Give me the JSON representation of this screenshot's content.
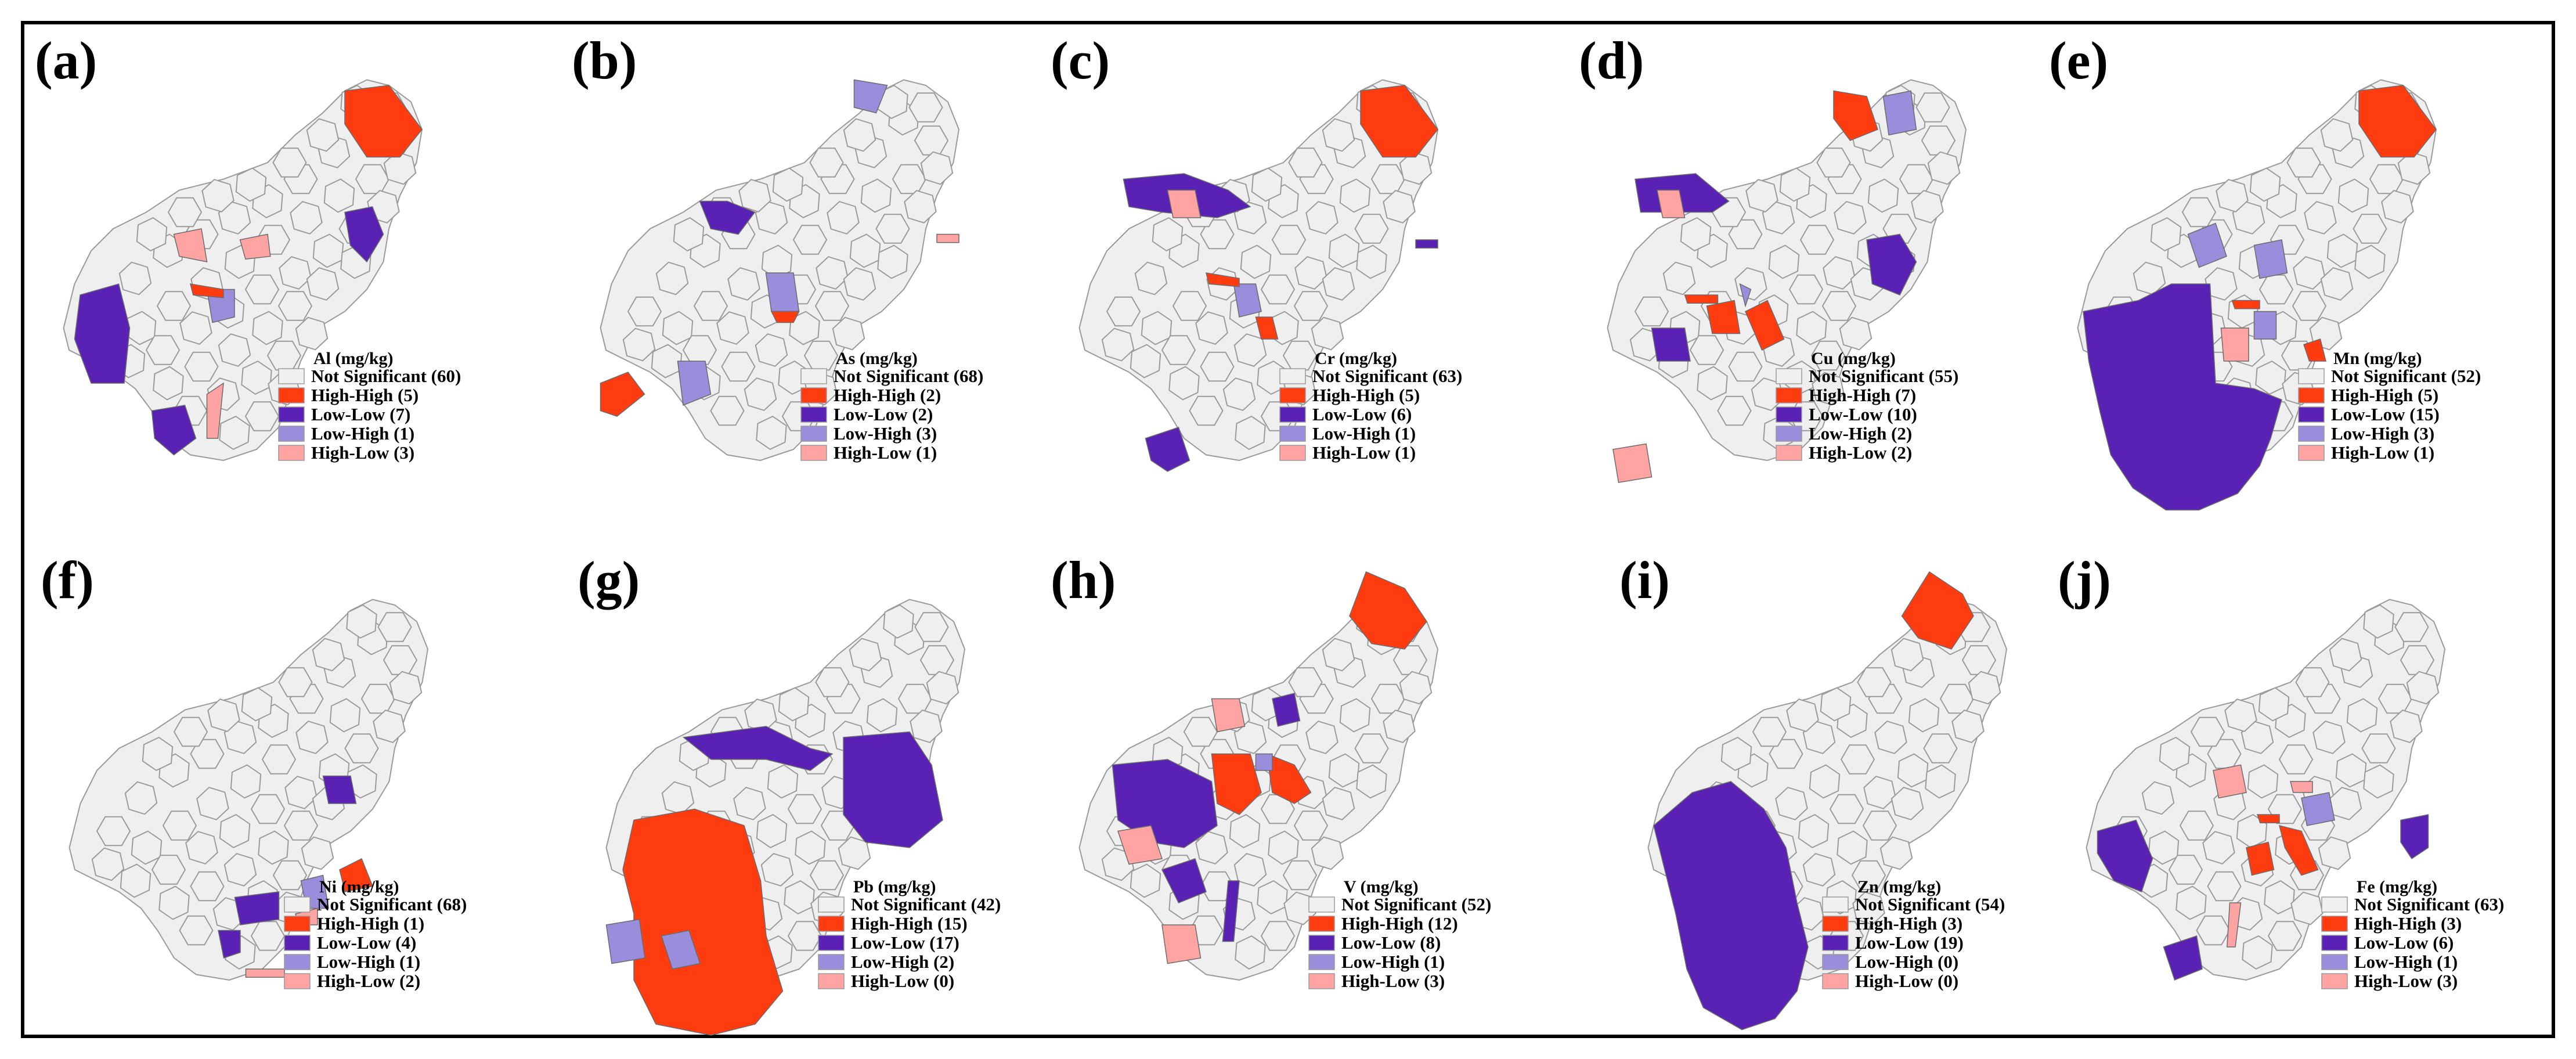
{
  "categories": [
    {
      "key": "ns",
      "label": "Not Significant",
      "color": "#f0f0f0"
    },
    {
      "key": "hh",
      "label": "High-High",
      "color": "#ff3b10"
    },
    {
      "key": "ll",
      "label": "Low-Low",
      "color": "#5a22b4"
    },
    {
      "key": "lh",
      "label": "Low-High",
      "color": "#9a8ddc"
    },
    {
      "key": "hl",
      "label": "High-Low",
      "color": "#ffa3a3"
    }
  ],
  "panels": [
    {
      "id": "a",
      "label": "(a)",
      "title": "Al (mg/kg)",
      "counts": {
        "ns": 60,
        "hh": 5,
        "ll": 7,
        "lh": 1,
        "hl": 3
      }
    },
    {
      "id": "b",
      "label": "(b)",
      "title": "As (mg/kg)",
      "counts": {
        "ns": 68,
        "hh": 2,
        "ll": 2,
        "lh": 3,
        "hl": 1
      }
    },
    {
      "id": "c",
      "label": "(c)",
      "title": "Cr (mg/kg)",
      "counts": {
        "ns": 63,
        "hh": 5,
        "ll": 6,
        "lh": 1,
        "hl": 1
      }
    },
    {
      "id": "d",
      "label": "(d)",
      "title": "Cu (mg/kg)",
      "counts": {
        "ns": 55,
        "hh": 7,
        "ll": 10,
        "lh": 2,
        "hl": 2
      }
    },
    {
      "id": "e",
      "label": "(e)",
      "title": "Mn (mg/kg)",
      "counts": {
        "ns": 52,
        "hh": 5,
        "ll": 15,
        "lh": 3,
        "hl": 1
      }
    },
    {
      "id": "f",
      "label": "(f)",
      "title": "Ni (mg/kg)",
      "counts": {
        "ns": 68,
        "hh": 1,
        "ll": 4,
        "lh": 1,
        "hl": 2
      }
    },
    {
      "id": "g",
      "label": "(g)",
      "title": "Pb (mg/kg)",
      "counts": {
        "ns": 42,
        "hh": 15,
        "ll": 17,
        "lh": 2,
        "hl": 0
      }
    },
    {
      "id": "h",
      "label": "(h)",
      "title": "V (mg/kg)",
      "counts": {
        "ns": 52,
        "hh": 12,
        "ll": 8,
        "lh": 1,
        "hl": 3
      }
    },
    {
      "id": "i",
      "label": "(i)",
      "title": "Zn (mg/kg)",
      "counts": {
        "ns": 54,
        "hh": 3,
        "ll": 19,
        "lh": 0,
        "hl": 0
      }
    },
    {
      "id": "j",
      "label": "(j)",
      "title": "Fe (mg/kg)",
      "counts": {
        "ns": 63,
        "hh": 3,
        "ll": 6,
        "lh": 1,
        "hl": 3
      }
    }
  ]
}
